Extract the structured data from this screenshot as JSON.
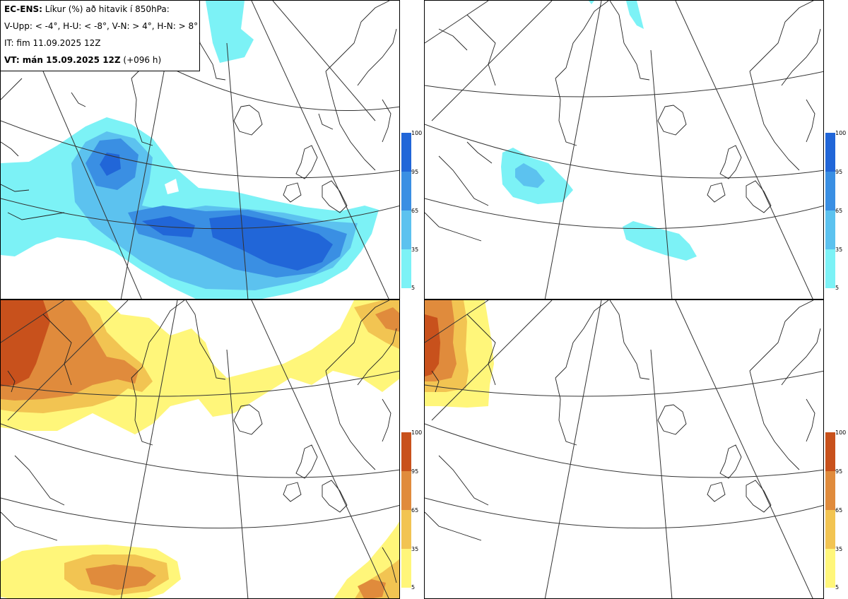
{
  "info": {
    "model": "EC-ENS:",
    "title_rest": " Líkur (%) að hitavik í 850hPa:",
    "categories": "V-Upp: < -4°, H-U: < -8°, V-N: > 4°, H-N: > 8°",
    "it": "IT: fim 11.09.2025 12Z",
    "vt_bold": "VT: mán 15.09.2025 12Z",
    "vt_rest": " (+096 h)"
  },
  "colorbars": {
    "ticks": [
      "100",
      "95",
      "65",
      "35",
      "5"
    ],
    "blue_colors": [
      "#2166d8",
      "#3a8fe3",
      "#5cc2ef",
      "#7cf2f6"
    ],
    "orange_colors": [
      "#c8511c",
      "#e08b3c",
      "#f2c452",
      "#fff67a"
    ]
  },
  "panels": [
    {
      "name": "V-Upp",
      "scale": "blue"
    },
    {
      "name": "H-U",
      "scale": "blue"
    },
    {
      "name": "V-N",
      "scale": "orange"
    },
    {
      "name": "H-N",
      "scale": "orange"
    }
  ]
}
